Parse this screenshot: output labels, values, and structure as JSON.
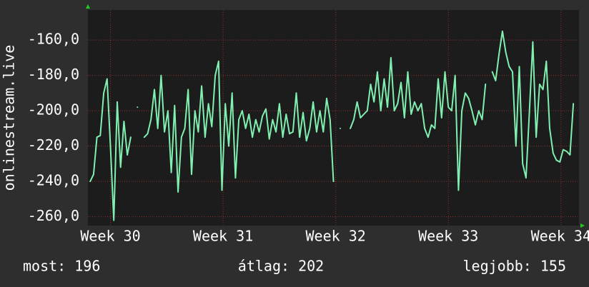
{
  "chart_data": {
    "type": "line",
    "ylabel": "onlinestream.live",
    "annotations": [
      "most: 196",
      "átlag: 202",
      "legjobb: 155"
    ],
    "xlim": [
      29.8,
      34.16
    ],
    "xticks": [
      {
        "value": 30,
        "label": "Week 30"
      },
      {
        "value": 31,
        "label": "Week 31"
      },
      {
        "value": 32,
        "label": "Week 32"
      },
      {
        "value": 33,
        "label": "Week 33"
      },
      {
        "value": 34,
        "label": "Week 34"
      }
    ],
    "ylim": [
      -265,
      -143
    ],
    "yticks": [
      {
        "value": -260,
        "label": "-260,0"
      },
      {
        "value": -240,
        "label": "-240,0"
      },
      {
        "value": -220,
        "label": "-220,0"
      },
      {
        "value": -200,
        "label": "-200,0"
      },
      {
        "value": -180,
        "label": "-180,0"
      },
      {
        "value": -160,
        "label": "-160,0"
      }
    ],
    "grid": true,
    "x": [
      29.82,
      29.85,
      29.88,
      29.91,
      29.94,
      29.97,
      30,
      30.03,
      30.06,
      30.09,
      30.12,
      30.15,
      30.18,
      30.21,
      30.24,
      30.27,
      30.3,
      30.33,
      30.36,
      30.39,
      30.42,
      30.45,
      30.48,
      30.51,
      30.54,
      30.57,
      30.6,
      30.63,
      30.66,
      30.69,
      30.72,
      30.75,
      30.78,
      30.81,
      30.84,
      30.87,
      30.9,
      30.93,
      30.96,
      30.99,
      31.02,
      31.05,
      31.08,
      31.11,
      31.14,
      31.17,
      31.2,
      31.23,
      31.26,
      31.29,
      31.32,
      31.35,
      31.38,
      31.41,
      31.44,
      31.47,
      31.5,
      31.53,
      31.56,
      31.59,
      31.62,
      31.65,
      31.68,
      31.71,
      31.74,
      31.77,
      31.8,
      31.83,
      31.86,
      31.89,
      31.92,
      31.95,
      31.98,
      32.01,
      32.04,
      32.07,
      32.1,
      32.13,
      32.16,
      32.19,
      32.22,
      32.25,
      32.28,
      32.31,
      32.34,
      32.37,
      32.4,
      32.43,
      32.46,
      32.49,
      32.52,
      32.55,
      32.58,
      32.61,
      32.64,
      32.67,
      32.7,
      32.73,
      32.76,
      32.79,
      32.82,
      32.85,
      32.88,
      32.91,
      32.94,
      32.97,
      33,
      33.03,
      33.06,
      33.09,
      33.12,
      33.15,
      33.18,
      33.21,
      33.24,
      33.27,
      33.3,
      33.33,
      33.36,
      33.39,
      33.42,
      33.45,
      33.48,
      33.51,
      33.54,
      33.57,
      33.6,
      33.63,
      33.66,
      33.69,
      33.72,
      33.75,
      33.78,
      33.81,
      33.84,
      33.87,
      33.9,
      33.93,
      33.96,
      33.99,
      34.02,
      34.05,
      34.08,
      34.11
    ],
    "series": [
      {
        "color": "#80f0b0",
        "values": [
          -240,
          -236,
          -215,
          -214,
          -190,
          -182,
          -220,
          -262,
          -195,
          -232,
          -206,
          -225,
          -215,
          null,
          -198,
          null,
          -215,
          -213,
          -205,
          -188,
          -210,
          -180,
          -212,
          -200,
          -235,
          -197,
          -246,
          -215,
          -210,
          -188,
          -236,
          -200,
          -212,
          -186,
          -215,
          -196,
          -209,
          -180,
          -172,
          -245,
          -196,
          -220,
          -190,
          -238,
          -205,
          -200,
          -210,
          -202,
          -215,
          -205,
          -212,
          -203,
          -199,
          -216,
          -205,
          -212,
          -196,
          -215,
          -202,
          -213,
          -212,
          -190,
          -215,
          -201,
          -217,
          -210,
          -195,
          -212,
          -200,
          -212,
          -193,
          -205,
          -240,
          null,
          -210,
          null,
          null,
          -210,
          -205,
          -195,
          -204,
          -202,
          -200,
          -185,
          -195,
          -178,
          -200,
          -182,
          -198,
          -170,
          -200,
          -196,
          -184,
          -204,
          -178,
          -202,
          -195,
          -200,
          -196,
          -210,
          -215,
          -208,
          -210,
          -182,
          -204,
          -178,
          -198,
          -200,
          -180,
          -245,
          -200,
          -190,
          -193,
          -200,
          -208,
          -200,
          -205,
          -185,
          null,
          -178,
          -183,
          -168,
          -155,
          -167,
          -175,
          -178,
          -220,
          -175,
          -230,
          -238,
          -200,
          -161,
          -215,
          -185,
          -188,
          -172,
          -210,
          -224,
          -228,
          -229,
          -222,
          -223,
          -225,
          -196
        ]
      }
    ]
  }
}
